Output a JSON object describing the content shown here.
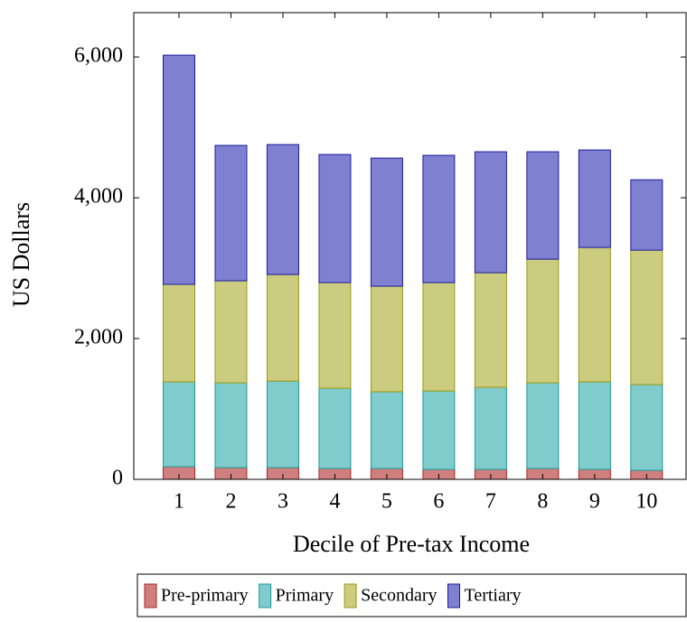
{
  "chart_data": {
    "type": "stacked-bar",
    "x_label": "Decile of Pre-tax Income",
    "y_label": "US Dollars",
    "x": [
      1,
      2,
      3,
      4,
      5,
      6,
      7,
      8,
      9,
      10
    ],
    "xlim": [
      0.13,
      10.76
    ],
    "xticks": [
      1,
      2,
      3,
      4,
      5,
      6,
      7,
      8,
      9,
      10
    ],
    "ylim": [
      0,
      6630
    ],
    "yticks": [
      0,
      {
        "value": 2000,
        "label": "2,000"
      },
      {
        "value": 4000,
        "label": "4,000"
      },
      {
        "value": 6000,
        "label": "6,000"
      }
    ],
    "series": [
      {
        "name": "Pre-primary",
        "color": "#d07f7f",
        "stroke": "#b22222",
        "values": [
          180,
          167,
          167,
          154,
          154,
          141,
          141,
          154,
          141,
          128
        ]
      },
      {
        "name": "Primary",
        "color": "#80cccc",
        "stroke": "#1a9a9a",
        "values": [
          1205,
          1205,
          1230,
          1141,
          1090,
          1115,
          1167,
          1218,
          1244,
          1218
        ]
      },
      {
        "name": "Secondary",
        "color": "#cccc80",
        "stroke": "#9a9a10",
        "values": [
          1385,
          1449,
          1513,
          1500,
          1500,
          1539,
          1628,
          1756,
          1910,
          1910
        ]
      },
      {
        "name": "Tertiary",
        "color": "#8080d0",
        "stroke": "#1a1aa0",
        "values": [
          3256,
          1923,
          1846,
          1820,
          1820,
          1808,
          1718,
          1526,
          1384,
          1000
        ]
      }
    ],
    "legend": "bottom"
  }
}
